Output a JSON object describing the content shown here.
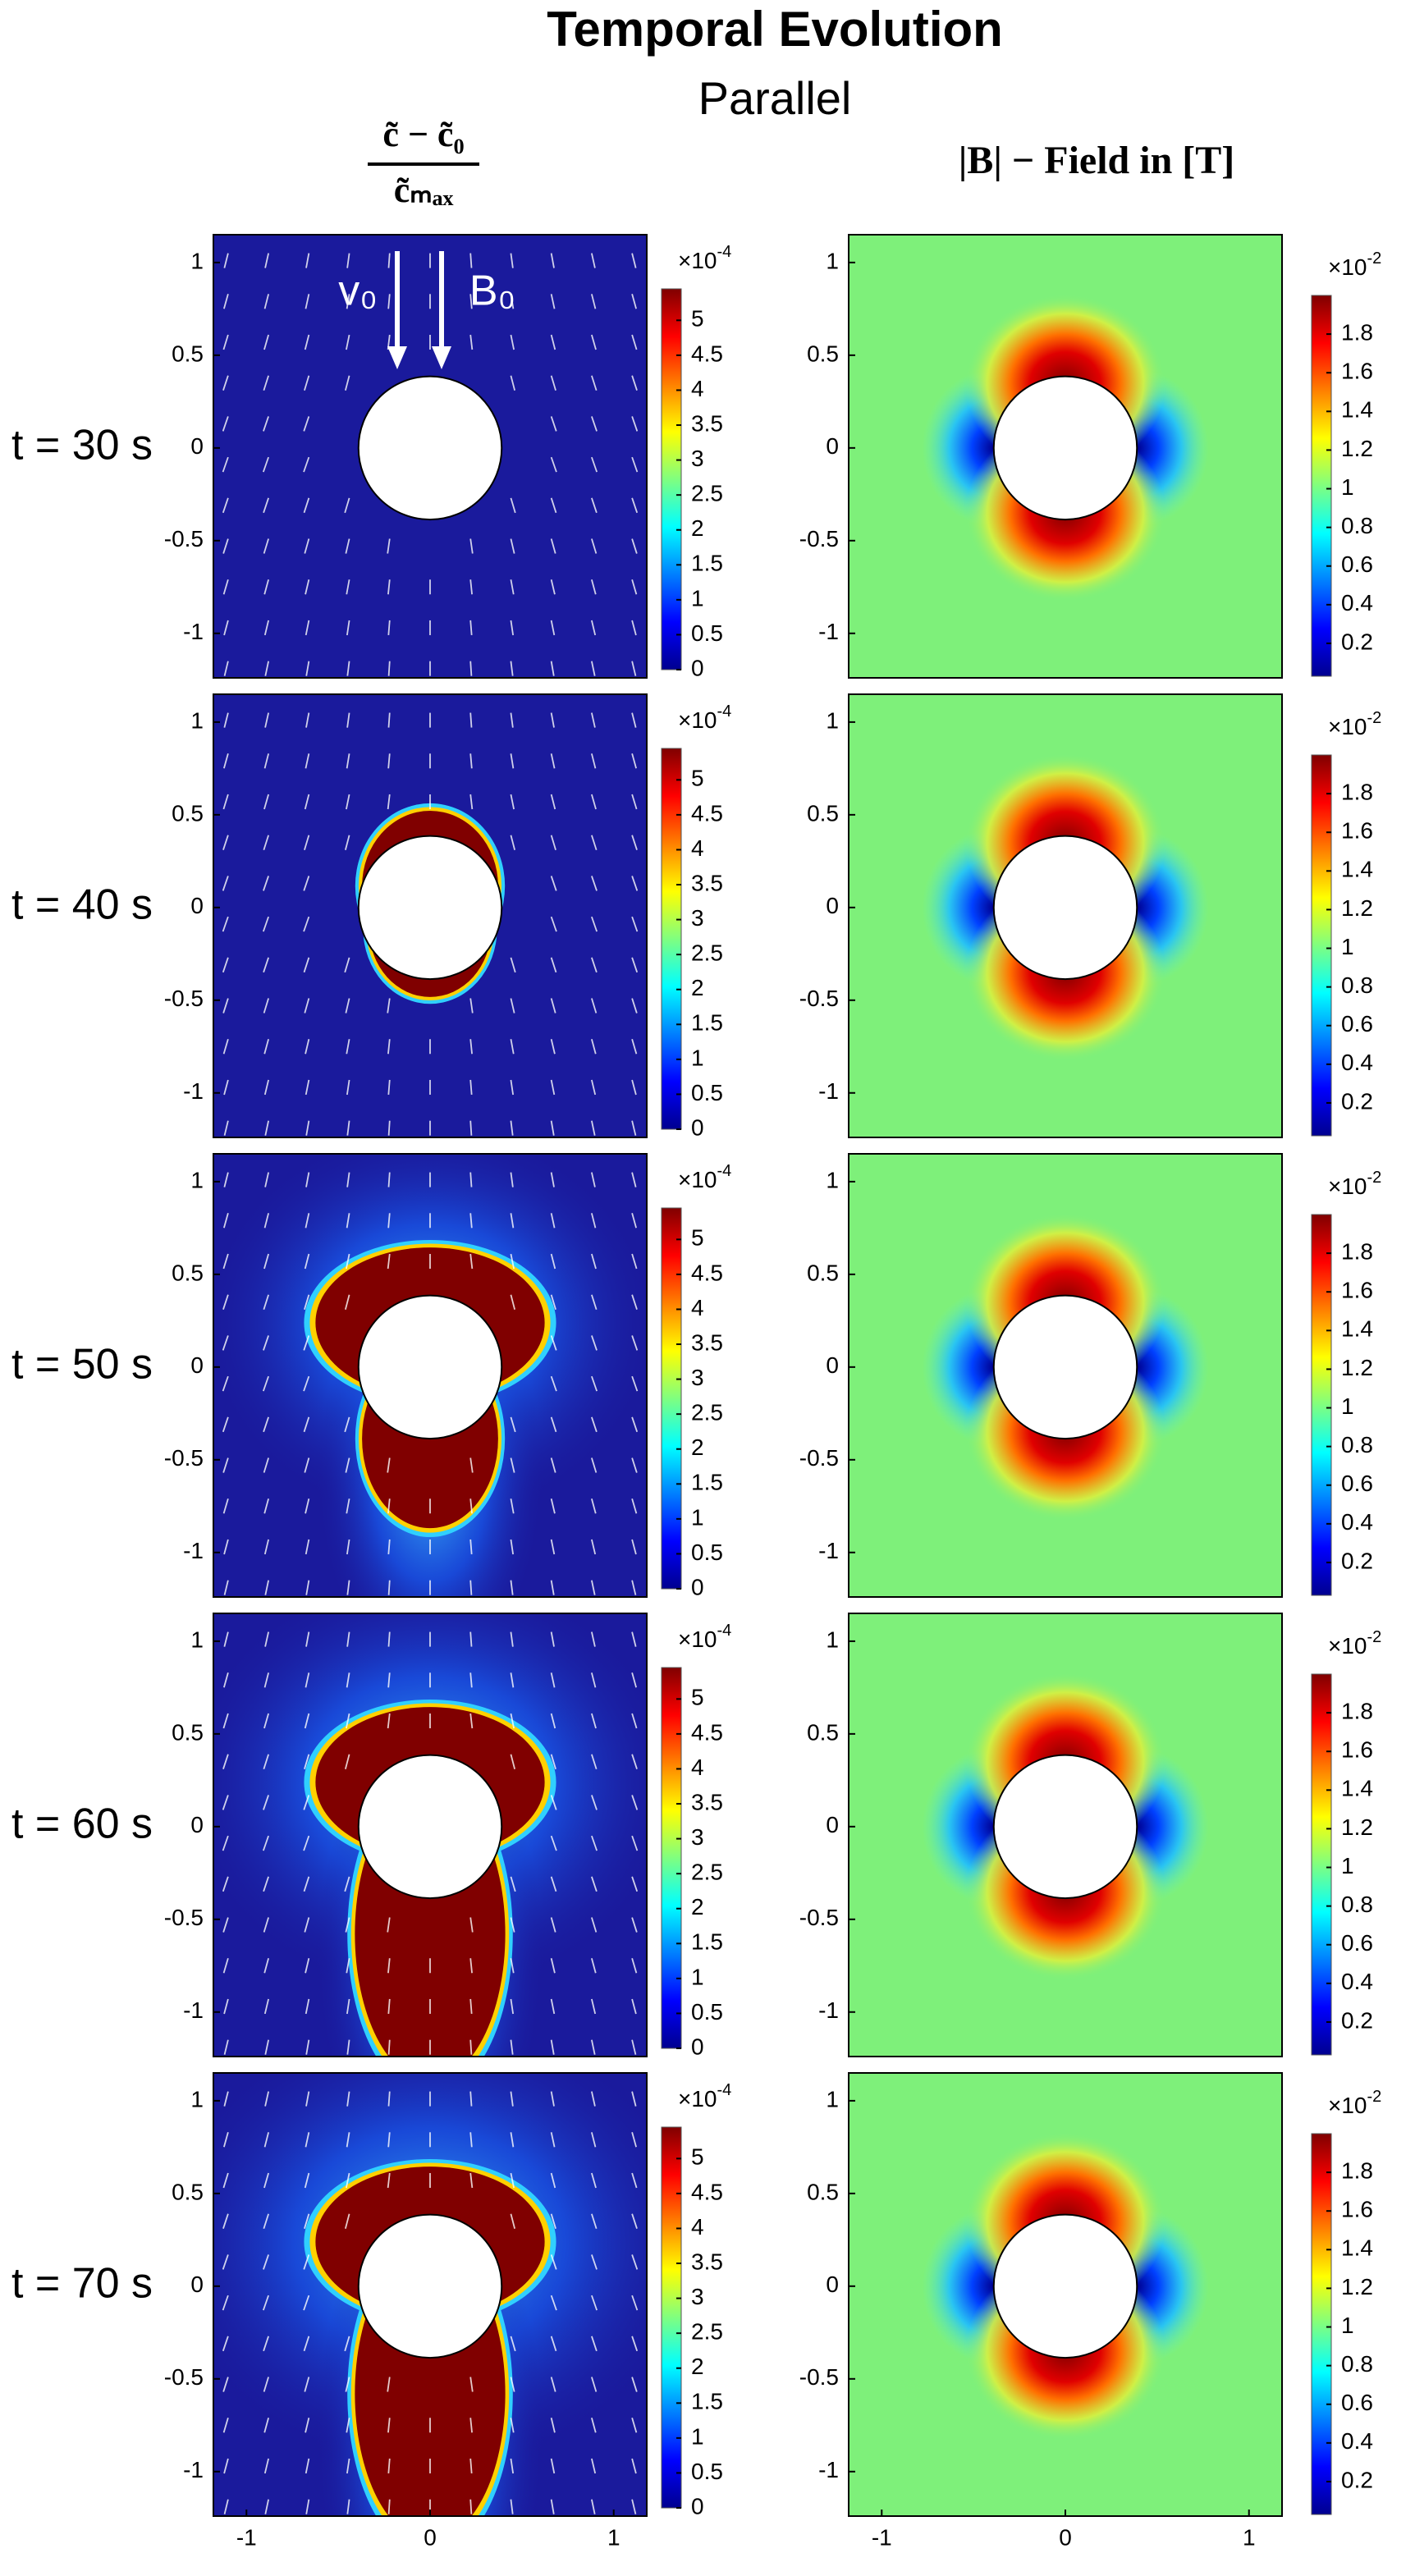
{
  "title": "Temporal Evolution",
  "subtitle": "Parallel",
  "column_headers": [
    {
      "numerator": "c̃ − c̃₀",
      "denominator": "c̃ₘₐₓ"
    },
    {
      "text": "|B| − Field in [T]"
    }
  ],
  "annotations": {
    "velocity": "v₀",
    "field": "B₀"
  },
  "chart_data": [
    {
      "type": "heatmap",
      "row_label": "t = 30 s",
      "xlim": [
        -1.18,
        1.18
      ],
      "ylim": [
        -1.24,
        1.15
      ],
      "yticks": [
        -1,
        -0.5,
        0,
        0.5,
        1
      ],
      "colorbar": {
        "lim": [
          0,
          5.45
        ],
        "ticks": [
          0,
          0.5,
          1,
          1.5,
          2,
          2.5,
          3,
          3.5,
          4,
          4.5,
          5
        ],
        "multiplier": {
          "base": "×10",
          "exponent": "-4"
        }
      }
    },
    {
      "type": "heatmap",
      "xlim": [
        -1.18,
        1.18
      ],
      "ylim": [
        -1.24,
        1.15
      ],
      "yticks": [
        -1,
        -0.5,
        0,
        0.5,
        1
      ],
      "colorbar": {
        "lim": [
          0.03,
          2.0
        ],
        "ticks": [
          0.2,
          0.4,
          0.6,
          0.8,
          1,
          1.2,
          1.4,
          1.6,
          1.8
        ],
        "multiplier": {
          "base": "×10",
          "exponent": "-2"
        }
      }
    },
    {
      "type": "heatmap",
      "row_label": "t = 40 s",
      "xlim": [
        -1.18,
        1.18
      ],
      "ylim": [
        -1.24,
        1.15
      ],
      "yticks": [
        -1,
        -0.5,
        0,
        0.5,
        1
      ],
      "colorbar": {
        "lim": [
          0,
          5.45
        ],
        "ticks": [
          0,
          0.5,
          1,
          1.5,
          2,
          2.5,
          3,
          3.5,
          4,
          4.5,
          5
        ],
        "multiplier": {
          "base": "×10",
          "exponent": "-4"
        }
      }
    },
    {
      "type": "heatmap",
      "xlim": [
        -1.18,
        1.18
      ],
      "ylim": [
        -1.24,
        1.15
      ],
      "yticks": [
        -1,
        -0.5,
        0,
        0.5,
        1
      ],
      "colorbar": {
        "lim": [
          0.03,
          2.0
        ],
        "ticks": [
          0.2,
          0.4,
          0.6,
          0.8,
          1,
          1.2,
          1.4,
          1.6,
          1.8
        ],
        "multiplier": {
          "base": "×10",
          "exponent": "-2"
        }
      }
    },
    {
      "type": "heatmap",
      "row_label": "t = 50 s",
      "xlim": [
        -1.18,
        1.18
      ],
      "ylim": [
        -1.24,
        1.15
      ],
      "yticks": [
        -1,
        -0.5,
        0,
        0.5,
        1
      ],
      "colorbar": {
        "lim": [
          0,
          5.45
        ],
        "ticks": [
          0,
          0.5,
          1,
          1.5,
          2,
          2.5,
          3,
          3.5,
          4,
          4.5,
          5
        ],
        "multiplier": {
          "base": "×10",
          "exponent": "-4"
        }
      }
    },
    {
      "type": "heatmap",
      "xlim": [
        -1.18,
        1.18
      ],
      "ylim": [
        -1.24,
        1.15
      ],
      "yticks": [
        -1,
        -0.5,
        0,
        0.5,
        1
      ],
      "colorbar": {
        "lim": [
          0.03,
          2.0
        ],
        "ticks": [
          0.2,
          0.4,
          0.6,
          0.8,
          1,
          1.2,
          1.4,
          1.6,
          1.8
        ],
        "multiplier": {
          "base": "×10",
          "exponent": "-2"
        }
      }
    },
    {
      "type": "heatmap",
      "row_label": "t = 60 s",
      "xlim": [
        -1.18,
        1.18
      ],
      "ylim": [
        -1.24,
        1.15
      ],
      "yticks": [
        -1,
        -0.5,
        0,
        0.5,
        1
      ],
      "colorbar": {
        "lim": [
          0,
          5.45
        ],
        "ticks": [
          0,
          0.5,
          1,
          1.5,
          2,
          2.5,
          3,
          3.5,
          4,
          4.5,
          5
        ],
        "multiplier": {
          "base": "×10",
          "exponent": "-4"
        }
      }
    },
    {
      "type": "heatmap",
      "xlim": [
        -1.18,
        1.18
      ],
      "ylim": [
        -1.24,
        1.15
      ],
      "yticks": [
        -1,
        -0.5,
        0,
        0.5,
        1
      ],
      "colorbar": {
        "lim": [
          0.03,
          2.0
        ],
        "ticks": [
          0.2,
          0.4,
          0.6,
          0.8,
          1,
          1.2,
          1.4,
          1.6,
          1.8
        ],
        "multiplier": {
          "base": "×10",
          "exponent": "-2"
        }
      }
    },
    {
      "type": "heatmap",
      "row_label": "t = 70 s",
      "xlim": [
        -1.18,
        1.18
      ],
      "ylim": [
        -1.24,
        1.15
      ],
      "xticks": [
        -1,
        0,
        1
      ],
      "yticks": [
        -1,
        -0.5,
        0,
        0.5,
        1
      ],
      "colorbar": {
        "lim": [
          0,
          5.45
        ],
        "ticks": [
          0,
          0.5,
          1,
          1.5,
          2,
          2.5,
          3,
          3.5,
          4,
          4.5,
          5
        ],
        "multiplier": {
          "base": "×10",
          "exponent": "-4"
        }
      }
    },
    {
      "type": "heatmap",
      "xlim": [
        -1.18,
        1.18
      ],
      "ylim": [
        -1.24,
        1.15
      ],
      "xticks": [
        -1,
        0,
        1
      ],
      "yticks": [
        -1,
        -0.5,
        0,
        0.5,
        1
      ],
      "colorbar": {
        "lim": [
          0.03,
          2.0
        ],
        "ticks": [
          0.2,
          0.4,
          0.6,
          0.8,
          1,
          1.2,
          1.4,
          1.6,
          1.8
        ],
        "multiplier": {
          "base": "×10",
          "exponent": "-2"
        }
      }
    }
  ]
}
